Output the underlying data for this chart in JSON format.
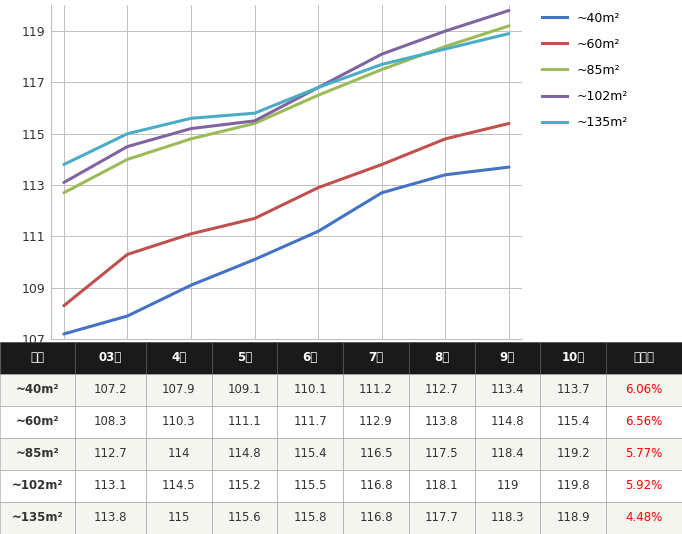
{
  "months": [
    "03월",
    "4월",
    "5월",
    "6월",
    "7월",
    "8월",
    "9월",
    "10월"
  ],
  "series": [
    {
      "label": "~40m²",
      "color": "#4472C4",
      "values": [
        107.2,
        107.9,
        109.1,
        110.1,
        111.2,
        112.7,
        113.4,
        113.7
      ]
    },
    {
      "label": "~60m²",
      "color": "#C0504D",
      "values": [
        108.3,
        110.3,
        111.1,
        111.7,
        112.9,
        113.8,
        114.8,
        115.4
      ]
    },
    {
      "label": "~85m²",
      "color": "#9BBB59",
      "values": [
        112.7,
        114.0,
        114.8,
        115.4,
        116.5,
        117.5,
        118.4,
        119.2
      ]
    },
    {
      "label": "~102m²",
      "color": "#8064A2",
      "values": [
        113.1,
        114.5,
        115.2,
        115.5,
        116.8,
        118.1,
        119.0,
        119.8
      ]
    },
    {
      "label": "~135m²",
      "color": "#4BACC6",
      "values": [
        113.8,
        115.0,
        115.6,
        115.8,
        116.8,
        117.7,
        118.3,
        118.9
      ]
    }
  ],
  "ylim": [
    107,
    120
  ],
  "yticks": [
    107,
    109,
    111,
    113,
    115,
    117,
    119
  ],
  "table_headers": [
    "크기",
    "03월",
    "4월",
    "5월",
    "6월",
    "7월",
    "8월",
    "9월",
    "10월",
    "상승률"
  ],
  "table_rows": [
    [
      "~40m²",
      "107.2",
      "107.9",
      "109.1",
      "110.1",
      "111.2",
      "112.7",
      "113.4",
      "113.7",
      "6.06%"
    ],
    [
      "~60m²",
      "108.3",
      "110.3",
      "111.1",
      "111.7",
      "112.9",
      "113.8",
      "114.8",
      "115.4",
      "6.56%"
    ],
    [
      "~85m²",
      "112.7",
      "114",
      "114.8",
      "115.4",
      "116.5",
      "117.5",
      "118.4",
      "119.2",
      "5.77%"
    ],
    [
      "~102m²",
      "113.1",
      "114.5",
      "115.2",
      "115.5",
      "116.8",
      "118.1",
      "119",
      "119.8",
      "5.92%"
    ],
    [
      "~135m²",
      "113.8",
      "115",
      "115.6",
      "115.8",
      "116.8",
      "117.7",
      "118.3",
      "118.9",
      "4.48%"
    ]
  ],
  "header_bg": "#1A1A1A",
  "header_fg": "#FFFFFF",
  "row_bg_light": "#F5F5F0",
  "row_bg_white": "#FFFFFF",
  "rate_color": "#FF0000",
  "grid_color": "#C0C0C0",
  "chart_bg": "#FFFFFF",
  "outer_bg": "#FFFFFF",
  "border_color": "#333333",
  "fig_width": 6.82,
  "fig_height": 5.34,
  "dpi": 100
}
